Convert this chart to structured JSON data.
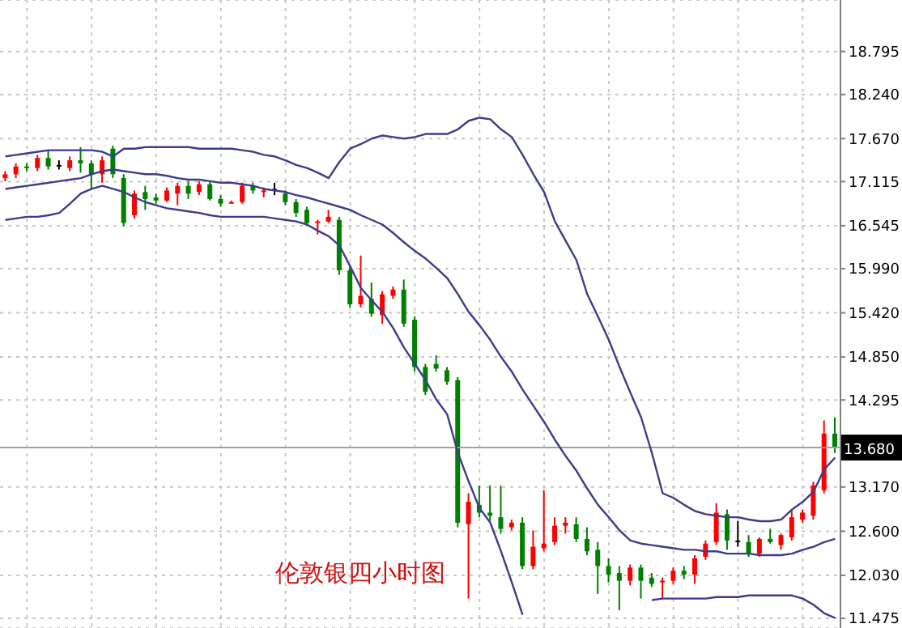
{
  "chart_data": {
    "type": "candlestick",
    "title": "伦敦银四小时图",
    "categories": [
      null,
      null,
      null,
      null,
      null,
      null,
      null,
      null,
      null,
      null,
      null,
      null,
      null,
      null,
      null,
      null,
      null,
      null,
      null,
      null,
      null,
      null,
      null,
      null,
      null,
      null,
      null,
      null,
      null,
      null,
      null,
      null,
      null,
      null,
      null,
      null,
      null,
      null,
      null,
      null,
      null,
      null,
      null,
      null,
      null,
      null,
      null,
      null,
      null,
      null,
      null,
      null,
      null,
      null,
      null,
      null,
      null,
      null,
      null,
      null,
      null,
      null,
      null,
      null,
      null,
      null,
      null,
      null,
      null,
      null,
      null,
      null,
      null,
      null,
      null,
      null,
      null,
      null
    ],
    "ohlc": [
      [
        17.16,
        17.25,
        17.12,
        17.21
      ],
      [
        17.21,
        17.35,
        17.16,
        17.31
      ],
      [
        17.31,
        17.35,
        17.25,
        17.29
      ],
      [
        17.29,
        17.46,
        17.25,
        17.42
      ],
      [
        17.42,
        17.52,
        17.27,
        17.31
      ],
      [
        17.33,
        17.39,
        17.27,
        17.33
      ],
      [
        17.29,
        17.44,
        17.25,
        17.39
      ],
      [
        17.39,
        17.56,
        17.23,
        17.35
      ],
      [
        17.35,
        17.39,
        17.02,
        17.21
      ],
      [
        17.21,
        17.44,
        17.1,
        17.39
      ],
      [
        17.54,
        17.58,
        17.16,
        17.21
      ],
      [
        17.16,
        17.21,
        16.54,
        16.58
      ],
      [
        16.68,
        17.0,
        16.64,
        16.96
      ],
      [
        16.98,
        17.06,
        16.75,
        16.89
      ],
      [
        16.91,
        16.96,
        16.83,
        16.87
      ],
      [
        16.87,
        17.04,
        16.85,
        17.0
      ],
      [
        16.96,
        17.1,
        16.81,
        17.06
      ],
      [
        17.06,
        17.12,
        16.89,
        16.96
      ],
      [
        16.98,
        17.12,
        16.94,
        17.08
      ],
      [
        17.08,
        17.12,
        16.87,
        16.89
      ],
      [
        16.89,
        16.94,
        16.79,
        16.83
      ],
      [
        16.83,
        16.87,
        16.83,
        16.85
      ],
      [
        16.85,
        17.1,
        16.83,
        17.06
      ],
      [
        17.06,
        17.1,
        16.96,
        17.0
      ],
      [
        16.98,
        17.04,
        16.91,
        17.0
      ],
      [
        17.02,
        17.1,
        16.94,
        17.02
      ],
      [
        16.96,
        17.0,
        16.81,
        16.85
      ],
      [
        16.85,
        16.89,
        16.66,
        16.71
      ],
      [
        16.75,
        16.79,
        16.54,
        16.58
      ],
      [
        16.58,
        16.62,
        16.43,
        16.6
      ],
      [
        16.6,
        16.75,
        16.58,
        16.66
      ],
      [
        16.62,
        16.66,
        15.91,
        15.97
      ],
      [
        15.97,
        16.02,
        15.49,
        15.53
      ],
      [
        15.53,
        16.16,
        15.49,
        15.64
      ],
      [
        15.6,
        15.81,
        15.37,
        15.41
      ],
      [
        15.39,
        15.7,
        15.28,
        15.66
      ],
      [
        15.64,
        15.76,
        15.6,
        15.72
      ],
      [
        15.72,
        15.85,
        15.24,
        15.28
      ],
      [
        15.33,
        15.37,
        14.66,
        14.72
      ],
      [
        14.72,
        14.76,
        14.36,
        14.4
      ],
      [
        14.76,
        14.87,
        14.66,
        14.7
      ],
      [
        14.68,
        14.72,
        14.49,
        14.53
      ],
      [
        14.55,
        14.59,
        12.65,
        12.71
      ],
      [
        12.69,
        13.09,
        11.73,
        12.98
      ],
      [
        12.94,
        13.19,
        12.78,
        12.84
      ],
      [
        12.84,
        13.19,
        12.73,
        12.8
      ],
      [
        12.78,
        13.19,
        12.57,
        12.63
      ],
      [
        12.65,
        12.75,
        12.61,
        12.71
      ],
      [
        12.71,
        12.78,
        12.11,
        12.15
      ],
      [
        12.15,
        12.61,
        12.11,
        12.4
      ],
      [
        12.38,
        13.13,
        12.34,
        12.44
      ],
      [
        12.46,
        12.78,
        12.42,
        12.67
      ],
      [
        12.67,
        12.78,
        12.57,
        12.71
      ],
      [
        12.69,
        12.78,
        12.46,
        12.5
      ],
      [
        12.5,
        12.65,
        12.29,
        12.34
      ],
      [
        12.36,
        12.46,
        11.79,
        12.15
      ],
      [
        12.15,
        12.25,
        11.94,
        12.04
      ],
      [
        12.06,
        12.15,
        11.58,
        11.96
      ],
      [
        11.96,
        12.17,
        11.9,
        12.13
      ],
      [
        12.13,
        12.17,
        11.73,
        11.96
      ],
      [
        12.0,
        12.06,
        11.88,
        11.92
      ],
      [
        11.94,
        12.0,
        11.73,
        11.96
      ],
      [
        11.96,
        12.13,
        11.92,
        12.09
      ],
      [
        12.09,
        12.15,
        11.98,
        12.04
      ],
      [
        12.04,
        12.29,
        11.92,
        12.25
      ],
      [
        12.27,
        12.48,
        12.23,
        12.44
      ],
      [
        12.46,
        12.96,
        12.42,
        12.84
      ],
      [
        12.82,
        12.88,
        12.36,
        12.48
      ],
      [
        12.48,
        12.73,
        12.4,
        12.48
      ],
      [
        12.46,
        12.55,
        12.27,
        12.31
      ],
      [
        12.31,
        12.52,
        12.27,
        12.5
      ],
      [
        12.5,
        12.63,
        12.44,
        12.46
      ],
      [
        12.42,
        12.57,
        12.36,
        12.55
      ],
      [
        12.52,
        12.88,
        12.48,
        12.78
      ],
      [
        12.75,
        12.88,
        12.71,
        12.84
      ],
      [
        12.8,
        13.24,
        12.75,
        13.19
      ],
      [
        13.13,
        14.03,
        13.09,
        13.86
      ],
      [
        13.86,
        14.07,
        13.61,
        13.68
      ]
    ],
    "colors": [
      "#ff0000",
      "#ff0000",
      "#008000",
      "#ff0000",
      "#008000",
      "#000000",
      "#ff0000",
      "#008000",
      "#008000",
      "#ff0000",
      "#008000",
      "#008000",
      "#ff0000",
      "#008000",
      "#008000",
      "#ff0000",
      "#ff0000",
      "#008000",
      "#ff0000",
      "#008000",
      "#008000",
      "#ff0000",
      "#ff0000",
      "#008000",
      "#ff0000",
      "#000000",
      "#008000",
      "#008000",
      "#008000",
      "#ff0000",
      "#ff0000",
      "#008000",
      "#008000",
      "#ff0000",
      "#008000",
      "#ff0000",
      "#ff0000",
      "#008000",
      "#008000",
      "#008000",
      "#008000",
      "#008000",
      "#008000",
      "#ff0000",
      "#008000",
      "#008000",
      "#008000",
      "#ff0000",
      "#008000",
      "#ff0000",
      "#ff0000",
      "#ff0000",
      "#ff0000",
      "#008000",
      "#008000",
      "#008000",
      "#008000",
      "#008000",
      "#ff0000",
      "#008000",
      "#008000",
      "#ff0000",
      "#ff0000",
      "#008000",
      "#ff0000",
      "#ff0000",
      "#ff0000",
      "#008000",
      "#000000",
      "#008000",
      "#ff0000",
      "#008000",
      "#ff0000",
      "#ff0000",
      "#ff0000",
      "#ff0000",
      "#ff0000",
      "#008000"
    ],
    "series": [
      {
        "type": "line",
        "color": "#3c3c8c",
        "values": [
          17.44,
          17.46,
          17.48,
          17.5,
          17.52,
          17.52,
          17.52,
          17.52,
          17.52,
          17.5,
          17.44,
          17.54,
          17.54,
          17.56,
          17.56,
          17.56,
          17.56,
          17.56,
          17.54,
          17.54,
          17.54,
          17.54,
          17.52,
          17.5,
          17.46,
          17.44,
          17.39,
          17.33,
          17.29,
          17.23,
          17.16,
          17.37,
          17.54,
          17.6,
          17.67,
          17.71,
          17.69,
          17.67,
          17.69,
          17.73,
          17.73,
          17.73,
          17.79,
          17.9,
          17.94,
          17.92,
          17.79,
          17.69,
          17.46,
          17.21,
          16.98,
          16.6,
          16.35,
          16.1,
          15.66,
          15.37,
          15.07,
          14.72,
          14.39,
          14.07,
          13.61,
          13.09,
          13.03,
          12.94,
          12.86,
          12.82,
          12.8,
          12.78,
          12.78,
          12.75,
          12.73,
          12.73,
          12.75,
          12.88,
          12.98,
          13.11,
          13.4,
          13.55
        ]
      },
      {
        "type": "line",
        "color": "#3c3c8c",
        "values": [
          17.02,
          17.04,
          17.06,
          17.08,
          17.1,
          17.12,
          17.14,
          17.16,
          17.21,
          17.25,
          17.27,
          17.25,
          17.23,
          17.21,
          17.21,
          17.19,
          17.16,
          17.14,
          17.14,
          17.12,
          17.1,
          17.1,
          17.08,
          17.06,
          17.02,
          17.0,
          16.98,
          16.94,
          16.91,
          16.87,
          16.83,
          16.79,
          16.75,
          16.68,
          16.62,
          16.56,
          16.45,
          16.33,
          16.22,
          16.12,
          16.0,
          15.87,
          15.66,
          15.43,
          15.26,
          15.07,
          14.85,
          14.66,
          14.43,
          14.22,
          14.01,
          13.78,
          13.57,
          13.38,
          13.15,
          12.94,
          12.78,
          12.61,
          12.48,
          12.44,
          12.42,
          12.4,
          12.38,
          12.36,
          12.36,
          12.34,
          12.34,
          12.31,
          12.31,
          12.31,
          12.29,
          12.29,
          12.29,
          12.31,
          12.36,
          12.4,
          12.46,
          12.5
        ]
      },
      {
        "type": "line",
        "color": "#3c3c8c",
        "values": [
          16.62,
          16.64,
          16.66,
          16.66,
          16.68,
          16.71,
          16.83,
          16.96,
          17.02,
          17.06,
          17.02,
          16.98,
          16.91,
          16.85,
          16.81,
          16.77,
          16.75,
          16.73,
          16.71,
          16.68,
          16.66,
          16.66,
          16.66,
          16.66,
          16.66,
          16.64,
          16.62,
          16.6,
          16.56,
          16.48,
          16.41,
          16.29,
          16.02,
          15.74,
          15.58,
          15.43,
          15.22,
          14.97,
          14.76,
          14.55,
          14.3,
          14.11,
          13.61,
          13.24,
          12.9,
          12.71,
          12.34,
          11.94,
          11.52,
          null,
          null,
          null,
          null,
          null,
          null,
          null,
          null,
          null,
          null,
          null,
          11.71,
          11.73,
          11.73,
          11.73,
          11.73,
          11.73,
          11.75,
          11.75,
          11.75,
          11.77,
          11.77,
          11.77,
          11.77,
          11.77,
          11.73,
          11.65,
          11.54,
          11.48
        ]
      }
    ],
    "ylim": [
      11.35,
      19.46
    ],
    "yticks": [
      {
        "value": 11.475,
        "label": "11.475"
      },
      {
        "value": 12.03,
        "label": "12.030"
      },
      {
        "value": 12.6,
        "label": "12.600"
      },
      {
        "value": 13.17,
        "label": "13.170"
      },
      {
        "value": 14.295,
        "label": "14.295"
      },
      {
        "value": 14.85,
        "label": "14.850"
      },
      {
        "value": 15.42,
        "label": "15.420"
      },
      {
        "value": 15.99,
        "label": "15.990"
      },
      {
        "value": 16.545,
        "label": "16.545"
      },
      {
        "value": 17.115,
        "label": "17.115"
      },
      {
        "value": 17.67,
        "label": "17.670"
      },
      {
        "value": 18.24,
        "label": "18.240"
      },
      {
        "value": 18.795,
        "label": "18.795"
      }
    ],
    "ref_lines": [
      {
        "axis": "y",
        "value": 13.68,
        "label": "13.680",
        "color": "#a0a0a0"
      }
    ],
    "grid": true,
    "tick_labels": "y"
  }
}
